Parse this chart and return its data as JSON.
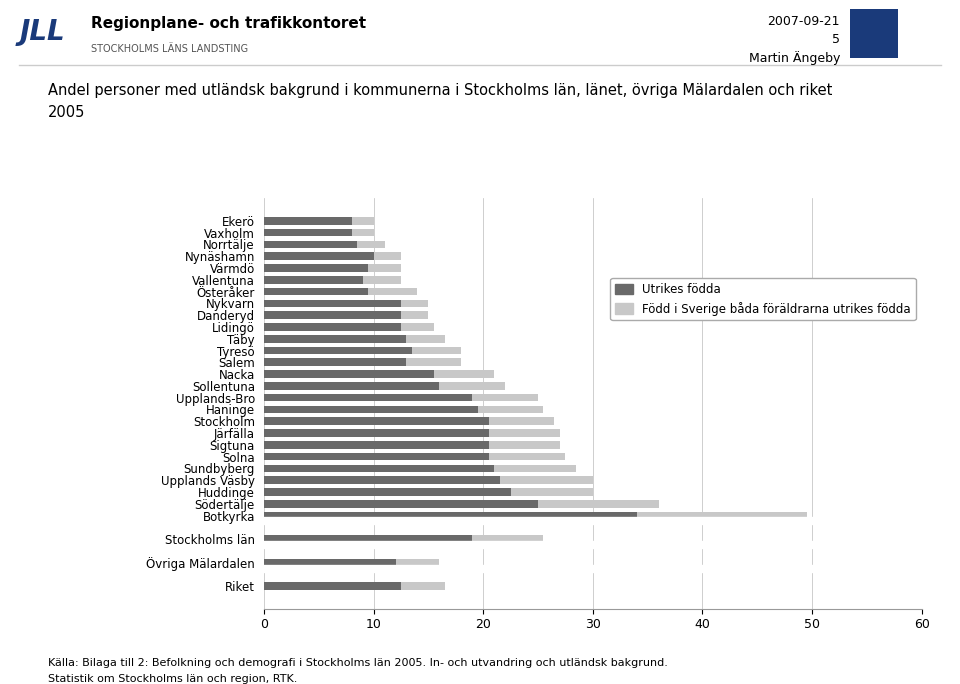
{
  "categories": [
    "Ekerö",
    "Vaxholm",
    "Norrtälje",
    "Nynäshamn",
    "Värmdö",
    "Vallentuna",
    "Österåker",
    "Nykvarn",
    "Danderyd",
    "Lidingö",
    "Täby",
    "Tyresö",
    "Salem",
    "Nacka",
    "Sollentuna",
    "Upplands-Bro",
    "Haninge",
    "Stockholm",
    "Järfälla",
    "Sigtuna",
    "Solna",
    "Sundbyberg",
    "Upplands Väsby",
    "Huddinge",
    "Södertälje",
    "Botkyrka",
    "",
    "Stockholms län",
    "",
    "Övriga Mälardalen",
    "",
    "Riket"
  ],
  "utrikes_fodda": [
    8.0,
    8.0,
    8.5,
    10.0,
    9.5,
    9.0,
    9.5,
    12.5,
    12.5,
    12.5,
    13.0,
    13.5,
    13.0,
    15.5,
    16.0,
    19.0,
    19.5,
    20.5,
    20.5,
    20.5,
    20.5,
    21.0,
    21.5,
    22.5,
    25.0,
    34.0,
    0,
    19.0,
    0,
    12.0,
    0,
    12.5
  ],
  "fodd_sverige": [
    2.0,
    2.0,
    2.5,
    2.5,
    3.0,
    3.5,
    4.5,
    2.5,
    2.5,
    3.0,
    3.5,
    4.5,
    5.0,
    5.5,
    6.0,
    6.0,
    6.0,
    6.0,
    6.5,
    6.5,
    7.0,
    7.5,
    8.5,
    7.5,
    11.0,
    15.5,
    0,
    6.5,
    0,
    4.0,
    0,
    4.0
  ],
  "color_utrikes": "#696969",
  "color_fodd": "#c8c8c8",
  "title_line1": "Andel personer med utländsk bakgrund i kommunerna i Stockholms län, länet, övriga Mälardalen och riket",
  "title_line2": "2005",
  "xlim": [
    0,
    60
  ],
  "xticks": [
    0,
    10,
    20,
    30,
    40,
    50,
    60
  ],
  "legend_utrikes": "Utrikes födda",
  "legend_fodd": "Född i Sverige båda föräldrarna utrikes födda",
  "footer1": "Källa: Bilaga till 2: Befolkning och demografi i Stockholms län 2005. In- och utvandring och utländsk bakgrund.",
  "footer2": "Statistik om Stockholms län och region, RTK.",
  "header_date": "2007-09-21",
  "header_num": "5",
  "header_name": "Martin Ängeby",
  "header_color": "#1a3a7a"
}
